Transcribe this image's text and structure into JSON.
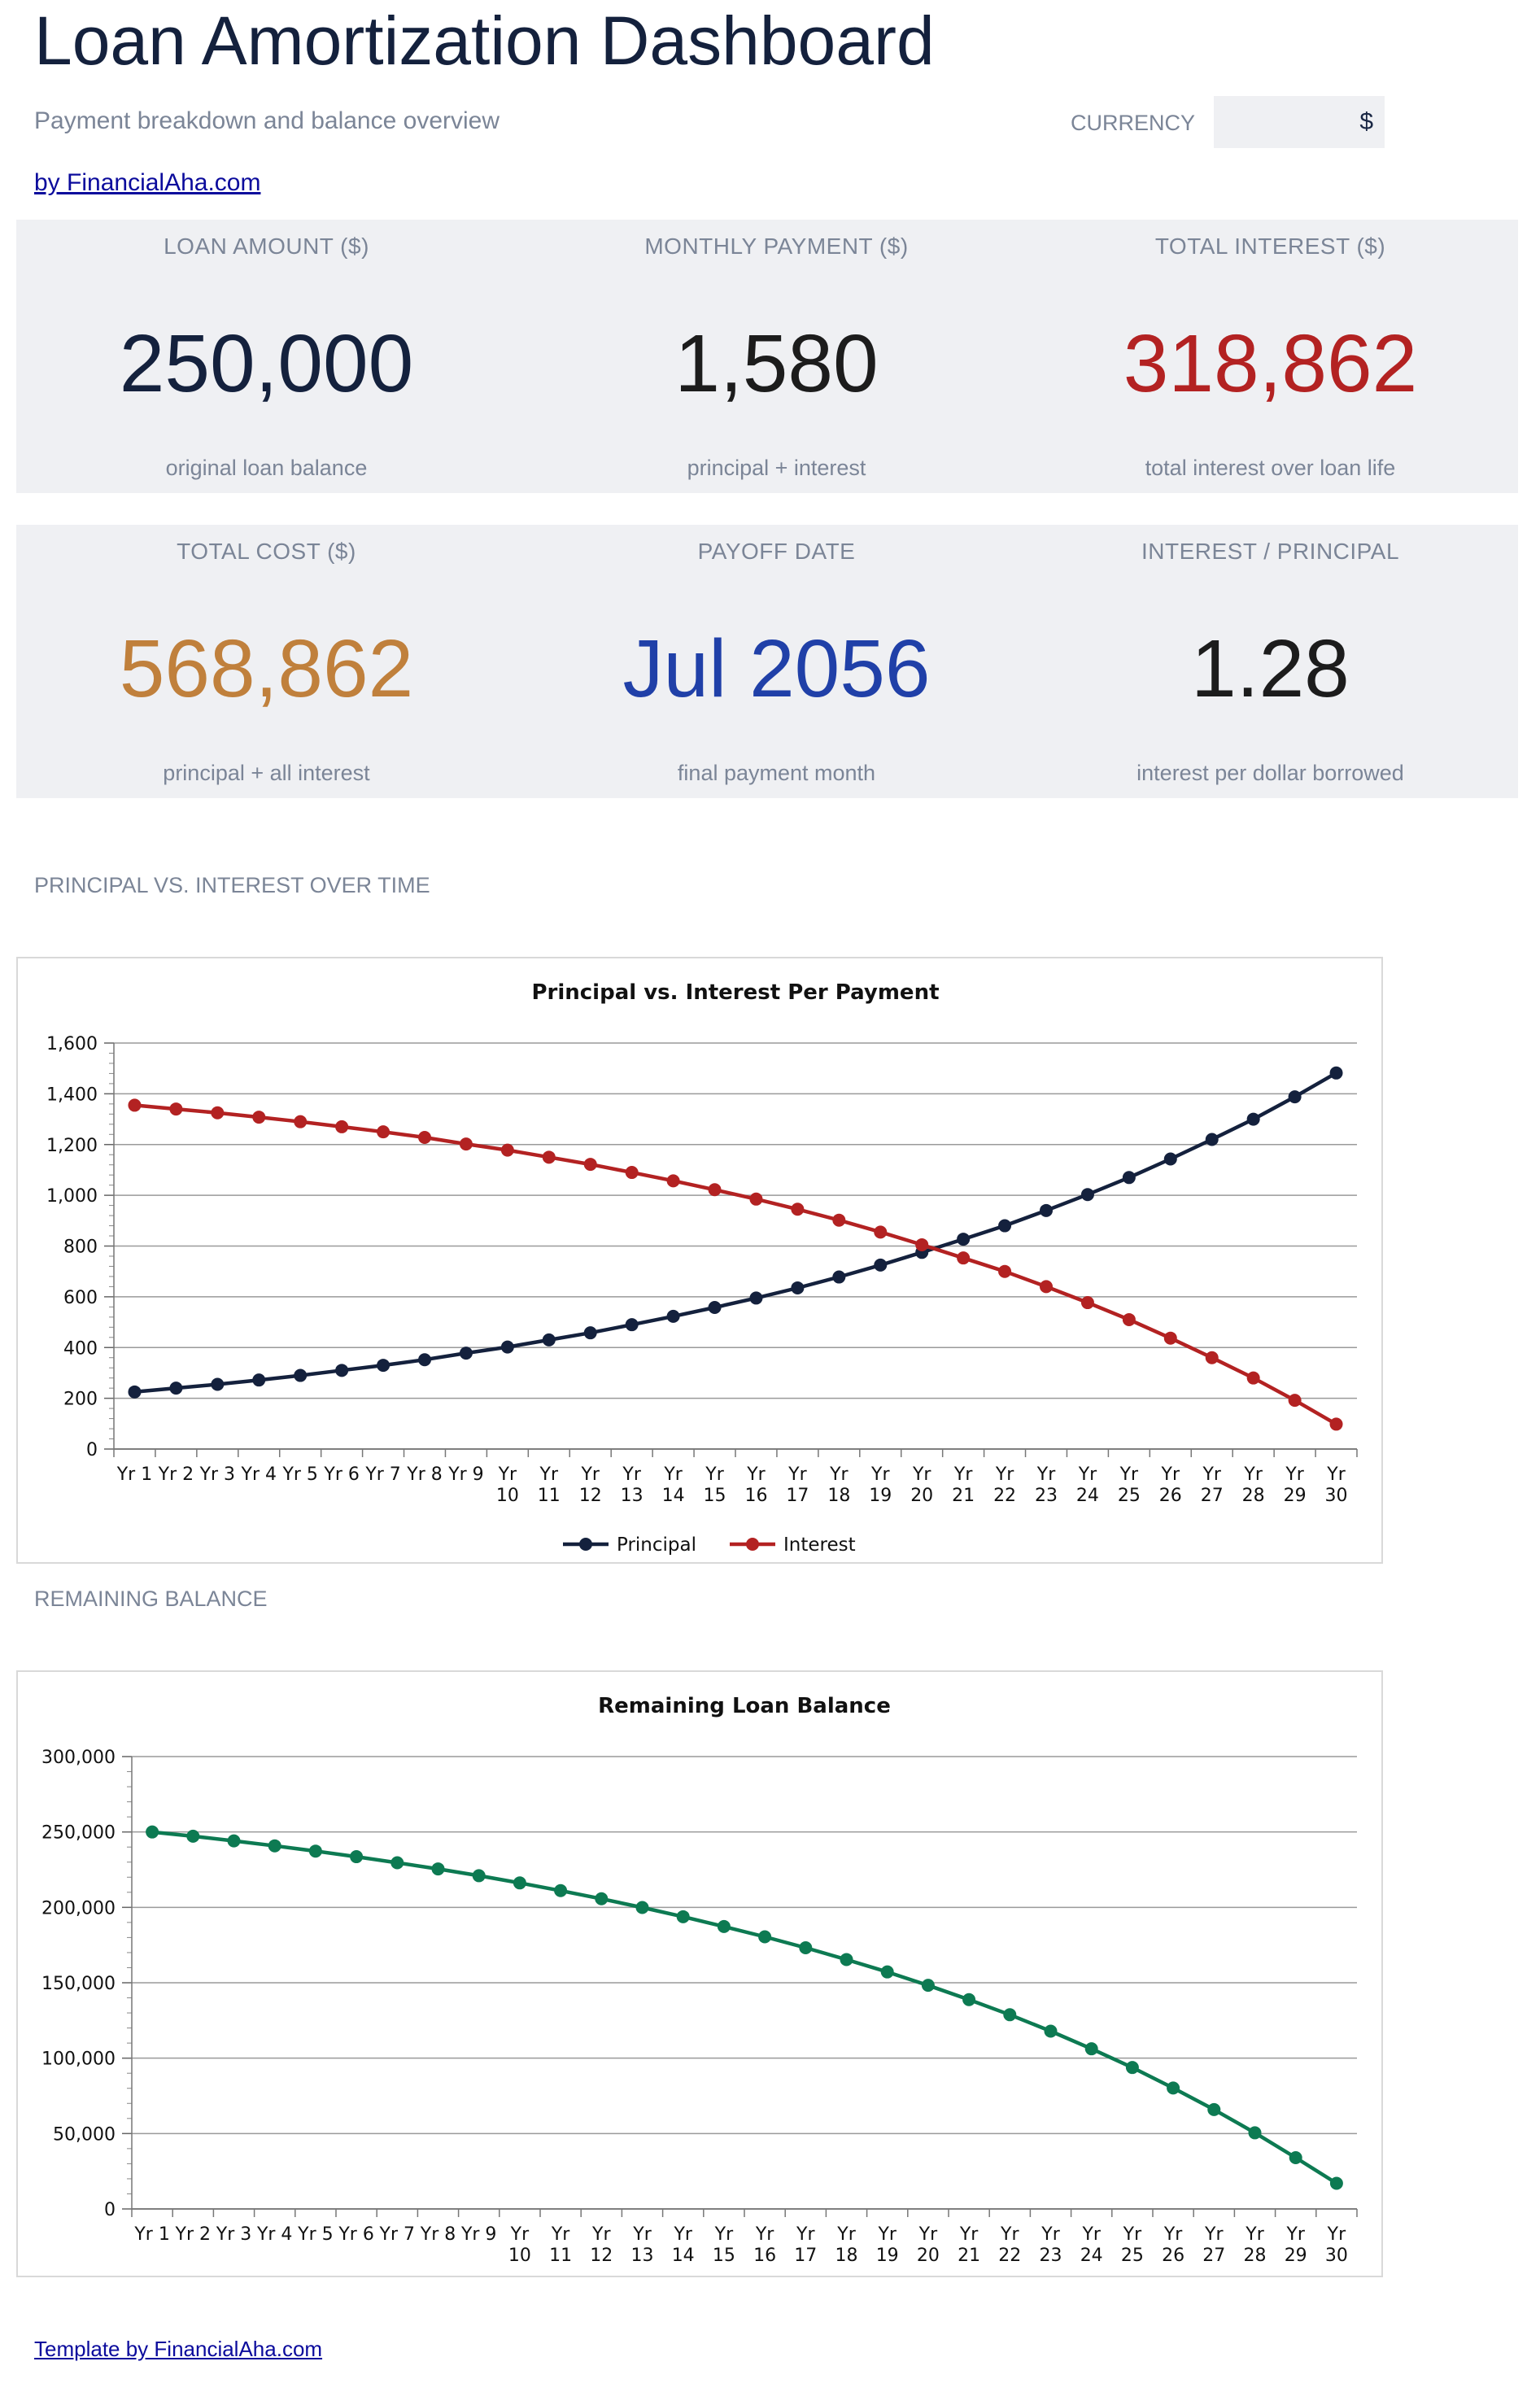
{
  "header": {
    "title": "Loan Amortization Dashboard",
    "subtitle": "Payment breakdown and balance overview",
    "currency_label": "CURRENCY",
    "currency_value": "$",
    "byline": "by FinancialAha.com"
  },
  "kpis": {
    "loan_amount": {
      "label": "LOAN AMOUNT ($)",
      "value": "250,000",
      "sub": "original loan balance",
      "color": "#14213d"
    },
    "monthly_payment": {
      "label": "MONTHLY PAYMENT ($)",
      "value": "1,580",
      "sub": "principal + interest",
      "color": "#1c1c1c"
    },
    "total_interest": {
      "label": "TOTAL INTEREST ($)",
      "value": "318,862",
      "sub": "total interest over loan life",
      "color": "#b32222"
    },
    "total_cost": {
      "label": "TOTAL COST ($)",
      "value": "568,862",
      "sub": "principal + all interest",
      "color": "#c0803c"
    },
    "payoff_date": {
      "label": "PAYOFF DATE",
      "value": "Jul 2056",
      "sub": "final payment month",
      "color": "#2040a8"
    },
    "interest_principal": {
      "label": "INTEREST / PRINCIPAL",
      "value": "1.28",
      "sub": "interest per dollar borrowed",
      "color": "#1c1c1c"
    }
  },
  "sections": {
    "chart1_label": "PRINCIPAL VS. INTEREST OVER TIME",
    "chart2_label": "REMAINING BALANCE"
  },
  "footer": {
    "link": "Template by FinancialAha.com"
  },
  "chart_data": [
    {
      "type": "line",
      "title": "Principal vs. Interest Per Payment",
      "categories": [
        "Yr 1",
        "Yr 2",
        "Yr 3",
        "Yr 4",
        "Yr 5",
        "Yr 6",
        "Yr 7",
        "Yr 8",
        "Yr 9",
        "Yr 10",
        "Yr 11",
        "Yr 12",
        "Yr 13",
        "Yr 14",
        "Yr 15",
        "Yr 16",
        "Yr 17",
        "Yr 18",
        "Yr 19",
        "Yr 20",
        "Yr 21",
        "Yr 22",
        "Yr 23",
        "Yr 24",
        "Yr 25",
        "Yr 26",
        "Yr 27",
        "Yr 28",
        "Yr 29",
        "Yr 30"
      ],
      "series": [
        {
          "name": "Principal",
          "color": "#14213d",
          "values": [
            225,
            240,
            255,
            272,
            290,
            310,
            330,
            352,
            378,
            402,
            430,
            458,
            490,
            523,
            558,
            595,
            635,
            678,
            725,
            775,
            827,
            880,
            940,
            1003,
            1070,
            1143,
            1220,
            1300,
            1388,
            1482
          ]
        },
        {
          "name": "Interest",
          "color": "#b32222",
          "values": [
            1355,
            1340,
            1325,
            1308,
            1290,
            1270,
            1250,
            1228,
            1202,
            1178,
            1150,
            1122,
            1090,
            1057,
            1022,
            985,
            945,
            902,
            855,
            805,
            753,
            700,
            640,
            577,
            510,
            437,
            360,
            280,
            192,
            98
          ]
        }
      ],
      "ylim": [
        0,
        1600
      ],
      "yticks": [
        "0",
        "200",
        "400",
        "600",
        "800",
        "1,000",
        "1,200",
        "1,400",
        "1,600"
      ],
      "grid": true,
      "legend": "bottom"
    },
    {
      "type": "line",
      "title": "Remaining Loan Balance",
      "categories": [
        "Yr 1",
        "Yr 2",
        "Yr 3",
        "Yr 4",
        "Yr 5",
        "Yr 6",
        "Yr 7",
        "Yr 8",
        "Yr 9",
        "Yr 10",
        "Yr 11",
        "Yr 12",
        "Yr 13",
        "Yr 14",
        "Yr 15",
        "Yr 16",
        "Yr 17",
        "Yr 18",
        "Yr 19",
        "Yr 20",
        "Yr 21",
        "Yr 22",
        "Yr 23",
        "Yr 24",
        "Yr 25",
        "Yr 26",
        "Yr 27",
        "Yr 28",
        "Yr 29",
        "Yr 30"
      ],
      "series": [
        {
          "color": "#0d7a52",
          "values": [
            250000,
            247200,
            244100,
            240800,
            237300,
            233600,
            229600,
            225500,
            221000,
            216200,
            211100,
            205700,
            199900,
            193800,
            187300,
            180500,
            173200,
            165400,
            157200,
            148300,
            138800,
            128800,
            117900,
            106200,
            93800,
            80200,
            65900,
            50500,
            34000,
            17000
          ]
        }
      ],
      "ylim": [
        0,
        300000
      ],
      "yticks": [
        "0",
        "50,000",
        "100,000",
        "150,000",
        "200,000",
        "250,000",
        "300,000"
      ],
      "grid": true,
      "legend": "none"
    }
  ]
}
